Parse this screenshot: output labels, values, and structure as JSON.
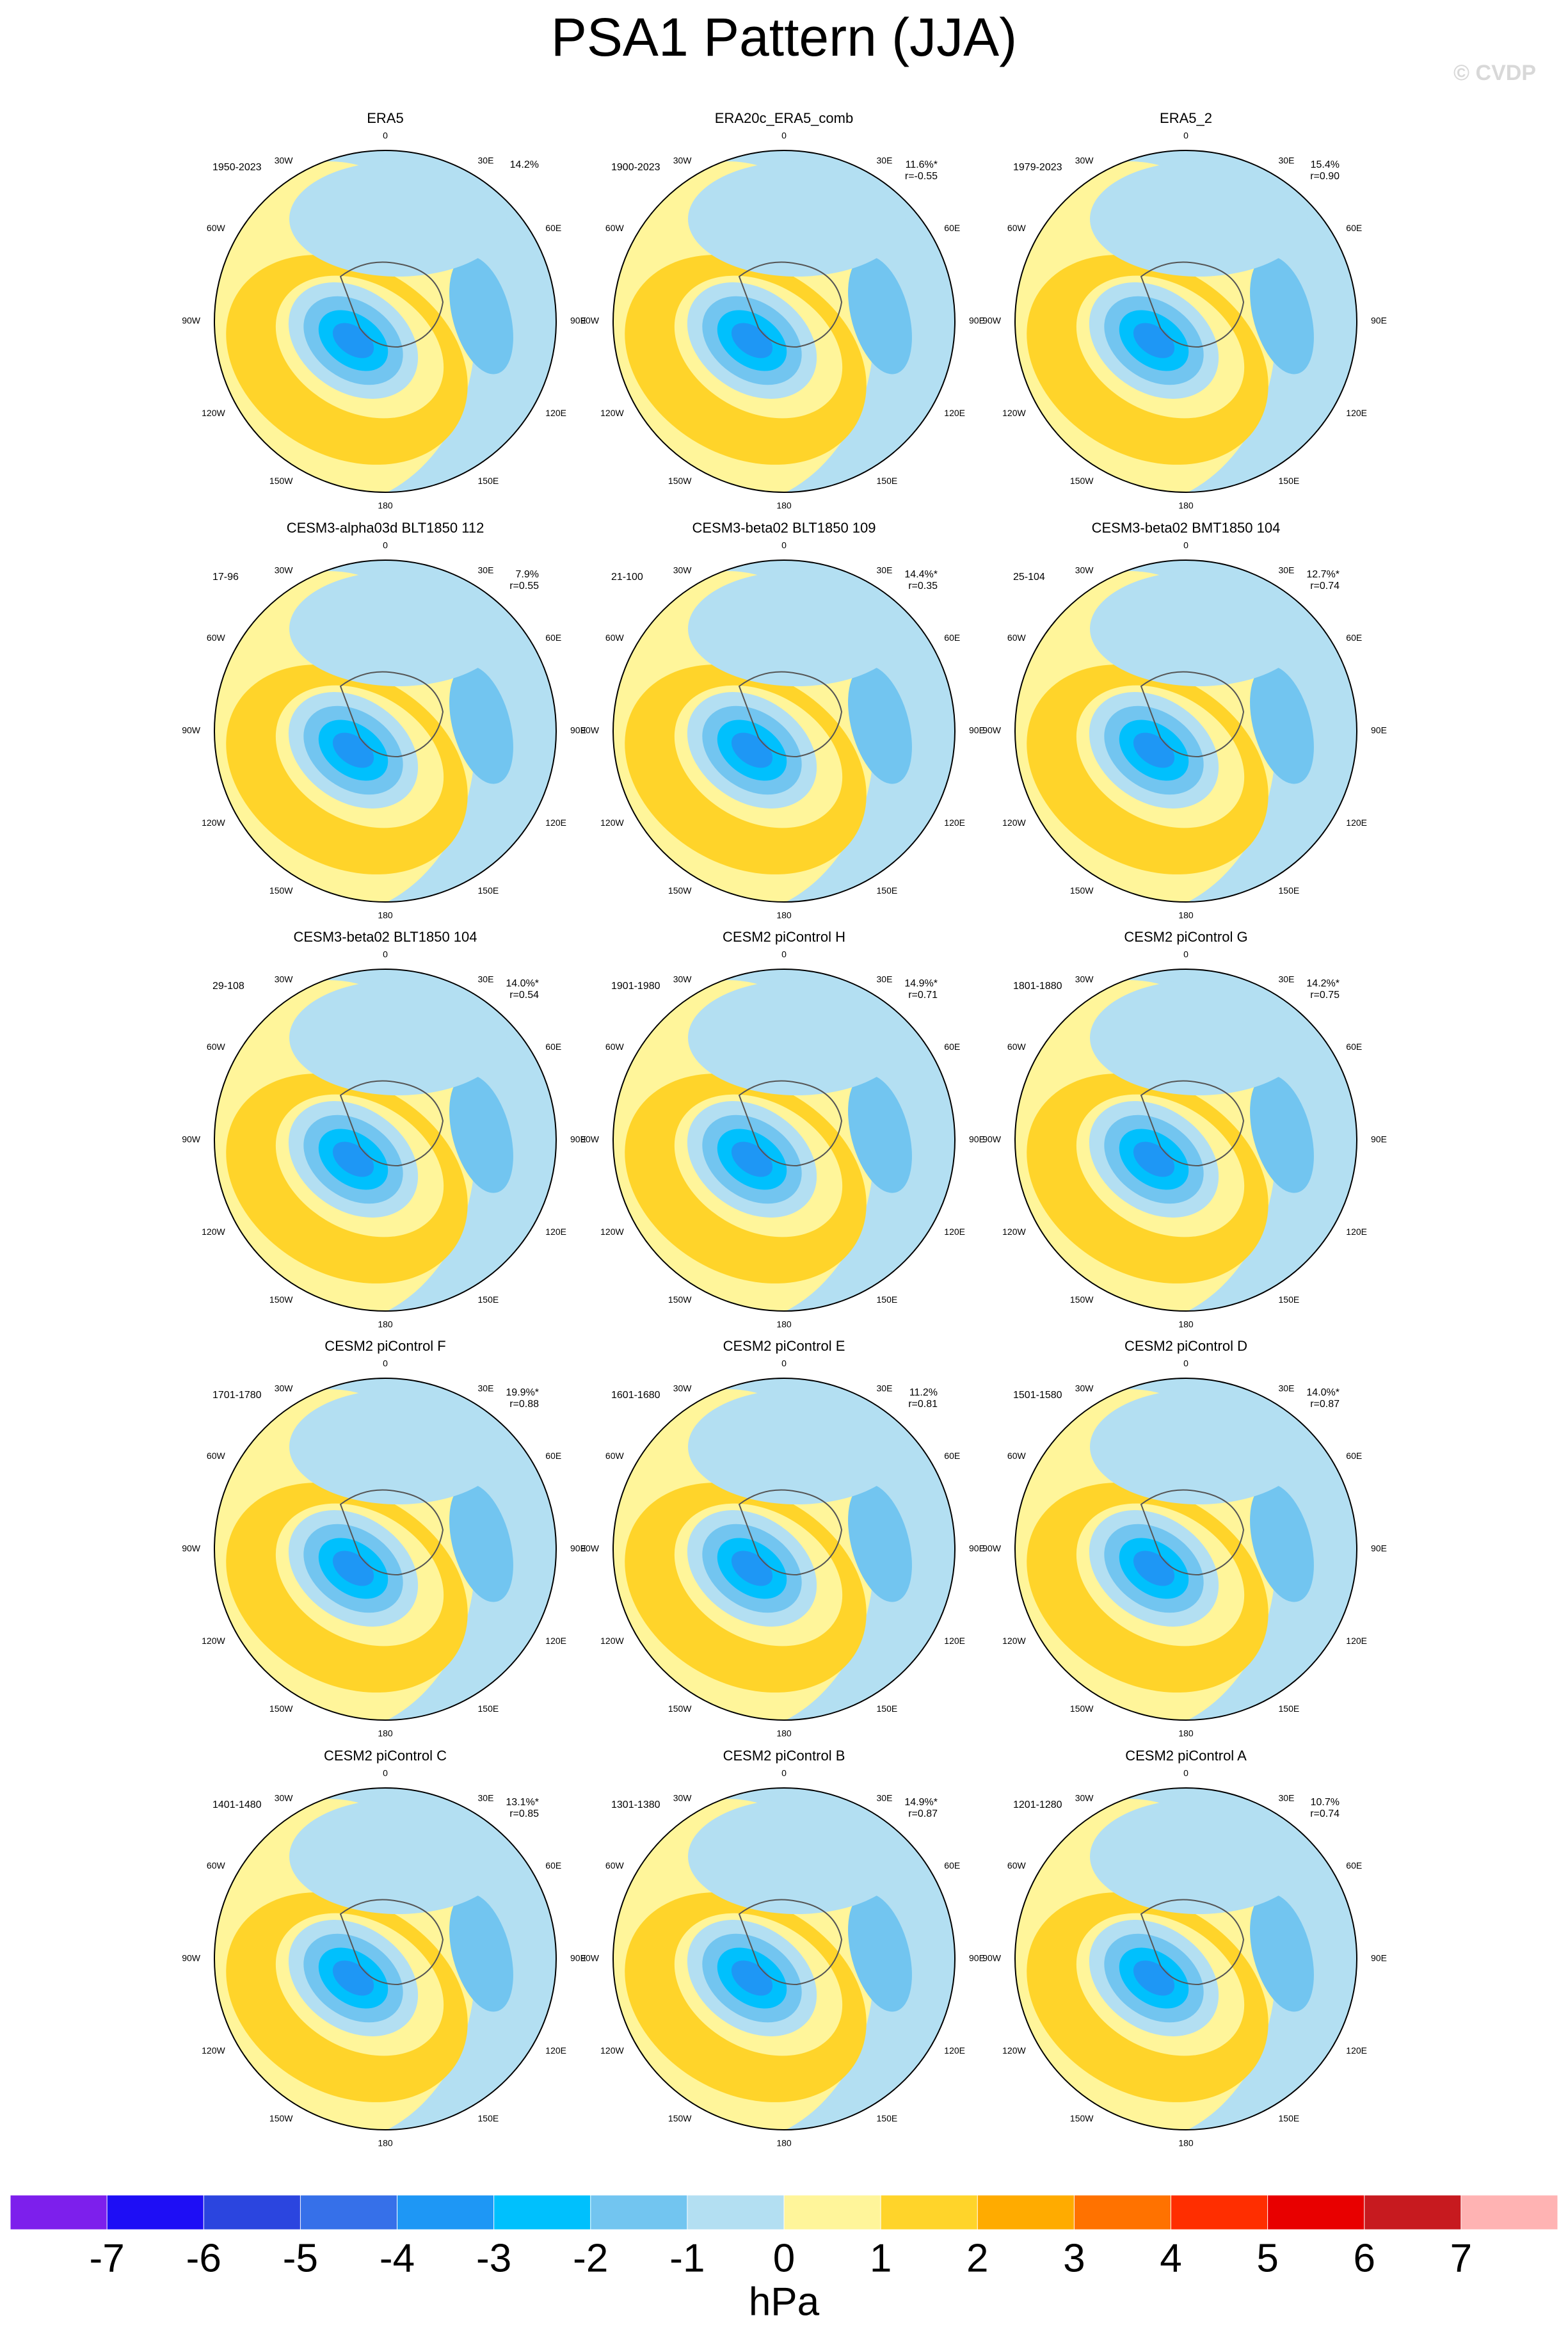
{
  "title": "PSA1 Pattern (JJA)",
  "watermark": "© CVDP",
  "lon_labels": [
    "0",
    "30E",
    "60E",
    "90E",
    "120E",
    "150E",
    "180",
    "150W",
    "120W",
    "90W",
    "60W",
    "30W"
  ],
  "panels": [
    {
      "title": "ERA5",
      "years": "1950-2023",
      "pct": "14.2%"
    },
    {
      "title": "ERA20c_ERA5_comb",
      "years": "1900-2023",
      "pct": "11.6%*",
      "r": "r=-0.55"
    },
    {
      "title": "ERA5_2",
      "years": "1979-2023",
      "pct": "15.4%",
      "r": "r=0.90"
    },
    {
      "title": "CESM3-alpha03d BLT1850 112",
      "years": "17-96",
      "pct": "7.9%",
      "r": "r=0.55"
    },
    {
      "title": "CESM3-beta02 BLT1850 109",
      "years": "21-100",
      "pct": "14.4%*",
      "r": "r=0.35"
    },
    {
      "title": "CESM3-beta02 BMT1850 104",
      "years": "25-104",
      "pct": "12.7%*",
      "r": "r=0.74"
    },
    {
      "title": "CESM3-beta02 BLT1850 104",
      "years": "29-108",
      "pct": "14.0%*",
      "r": "r=0.54"
    },
    {
      "title": "CESM2 piControl H",
      "years": "1901-1980",
      "pct": "14.9%*",
      "r": "r=0.71"
    },
    {
      "title": "CESM2 piControl G",
      "years": "1801-1880",
      "pct": "14.2%*",
      "r": "r=0.75"
    },
    {
      "title": "CESM2 piControl F",
      "years": "1701-1780",
      "pct": "19.9%*",
      "r": "r=0.88"
    },
    {
      "title": "CESM2 piControl E",
      "years": "1601-1680",
      "pct": "11.2%",
      "r": "r=0.81"
    },
    {
      "title": "CESM2 piControl D",
      "years": "1501-1580",
      "pct": "14.0%*",
      "r": "r=0.87"
    },
    {
      "title": "CESM2 piControl C",
      "years": "1401-1480",
      "pct": "13.1%*",
      "r": "r=0.85"
    },
    {
      "title": "CESM2 piControl B",
      "years": "1301-1380",
      "pct": "14.9%*",
      "r": "r=0.87"
    },
    {
      "title": "CESM2 piControl A",
      "years": "1201-1280",
      "pct": "10.7%",
      "r": "r=0.74"
    }
  ],
  "colorbar": {
    "label": "hPa",
    "ticks": [
      -7,
      -6,
      -5,
      -4,
      -3,
      -2,
      -1,
      0,
      1,
      2,
      3,
      4,
      5,
      6,
      7
    ],
    "colors": [
      "#7d1fec",
      "#1e0ef5",
      "#2b45df",
      "#3670e9",
      "#1e97f5",
      "#00c0fd",
      "#72c5f0",
      "#b3dff2",
      "#fff59a",
      "#ffd42a",
      "#ffab00",
      "#ff7200",
      "#ff2e00",
      "#e80000",
      "#c71a1f",
      "#ffb3b3"
    ]
  }
}
